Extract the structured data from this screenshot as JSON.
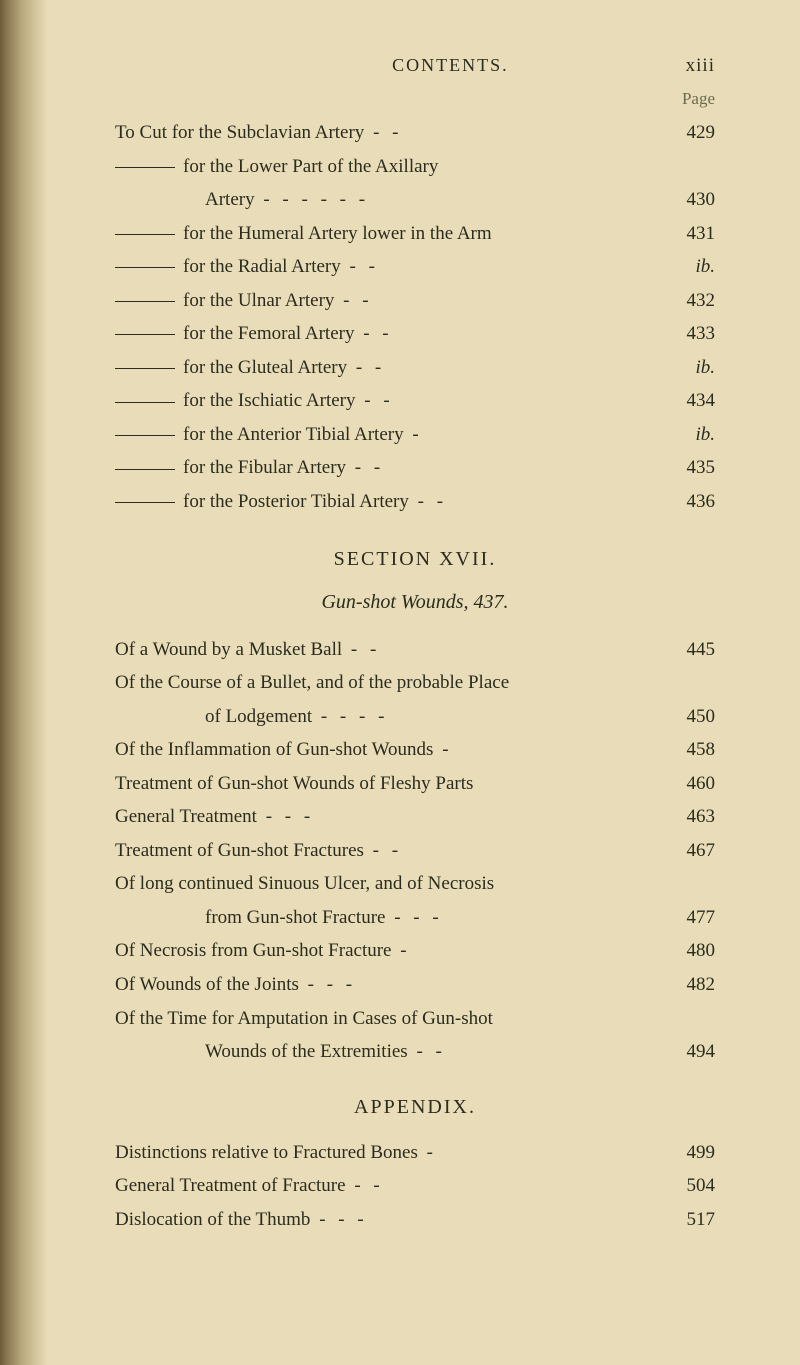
{
  "header": {
    "title": "CONTENTS.",
    "pageNumber": "xiii",
    "pageLabel": "Page"
  },
  "topEntries": [
    {
      "text": "To Cut for the Subclavian Artery",
      "dashes": "-   -",
      "page": "429",
      "indent": 0,
      "hasRule": false
    },
    {
      "text": "for the Lower Part of the Axillary",
      "dashes": "",
      "page": "",
      "indent": 0,
      "hasRule": true
    },
    {
      "text": "Artery",
      "dashes": "-   -   -   -   -   -",
      "page": "430",
      "indent": 2,
      "hasRule": false
    },
    {
      "text": "for the Humeral Artery lower in the Arm",
      "dashes": "",
      "page": "431",
      "indent": 0,
      "hasRule": true
    },
    {
      "text": "for the Radial Artery",
      "dashes": "-   -",
      "page": "ib.",
      "indent": 0,
      "hasRule": true,
      "italic": true
    },
    {
      "text": "for the Ulnar Artery",
      "dashes": "-   -",
      "page": "432",
      "indent": 0,
      "hasRule": true
    },
    {
      "text": "for the Femoral Artery",
      "dashes": "-   -",
      "page": "433",
      "indent": 0,
      "hasRule": true
    },
    {
      "text": "for the Gluteal Artery",
      "dashes": "-   -",
      "page": "ib.",
      "indent": 0,
      "hasRule": true,
      "italic": true
    },
    {
      "text": "for the Ischiatic Artery",
      "dashes": "-   -",
      "page": "434",
      "indent": 0,
      "hasRule": true
    },
    {
      "text": "for the Anterior Tibial Artery",
      "dashes": "-",
      "page": "ib.",
      "indent": 0,
      "hasRule": true,
      "italic": true
    },
    {
      "text": "for the Fibular Artery",
      "dashes": "-   -",
      "page": "435",
      "indent": 0,
      "hasRule": true
    },
    {
      "text": "for the Posterior Tibial Artery",
      "dashes": "-   -",
      "page": "436",
      "indent": 0,
      "hasRule": true
    }
  ],
  "section": {
    "title": "SECTION XVII.",
    "subtitle": "Gun-shot Wounds, 437."
  },
  "sectionEntries": [
    {
      "text": "Of a Wound by a Musket Ball",
      "dashes": "-   -",
      "page": "445",
      "indent": 0
    },
    {
      "text": "Of the Course of a Bullet, and of the probable Place",
      "dashes": "",
      "page": "",
      "indent": 0
    },
    {
      "text": "of Lodgement",
      "dashes": "-   -   -   -",
      "page": "450",
      "indent": 2
    },
    {
      "text": "Of the Inflammation of Gun-shot Wounds",
      "dashes": "-",
      "page": "458",
      "indent": 0
    },
    {
      "text": "Treatment of Gun-shot Wounds of Fleshy Parts",
      "dashes": "",
      "page": "460",
      "indent": 0
    },
    {
      "text": "General Treatment",
      "dashes": "-   -   -",
      "page": "463",
      "indent": 0
    },
    {
      "text": "Treatment of Gun-shot Fractures",
      "dashes": "-   -",
      "page": "467",
      "indent": 0
    },
    {
      "text": "Of long continued Sinuous Ulcer, and of Necrosis",
      "dashes": "",
      "page": "",
      "indent": 0
    },
    {
      "text": "from Gun-shot Fracture",
      "dashes": "-   -   -",
      "page": "477",
      "indent": 2
    },
    {
      "text": "Of Necrosis from Gun-shot Fracture",
      "dashes": "-",
      "page": "480",
      "indent": 0
    },
    {
      "text": "Of Wounds of the Joints",
      "dashes": "-   -   -",
      "page": "482",
      "indent": 0
    },
    {
      "text": "Of the Time for Amputation in Cases of Gun-shot",
      "dashes": "",
      "page": "",
      "indent": 0
    },
    {
      "text": "Wounds of the Extremities",
      "dashes": "-   -",
      "page": "494",
      "indent": 2
    }
  ],
  "appendix": {
    "title": "APPENDIX."
  },
  "appendixEntries": [
    {
      "text": "Distinctions relative to Fractured Bones",
      "dashes": "-",
      "page": "499",
      "indent": 0
    },
    {
      "text": "General Treatment of Fracture",
      "dashes": "-   -",
      "page": "504",
      "indent": 0
    },
    {
      "text": "Dislocation of the Thumb",
      "dashes": "-   -   -",
      "page": "517",
      "indent": 0
    }
  ]
}
